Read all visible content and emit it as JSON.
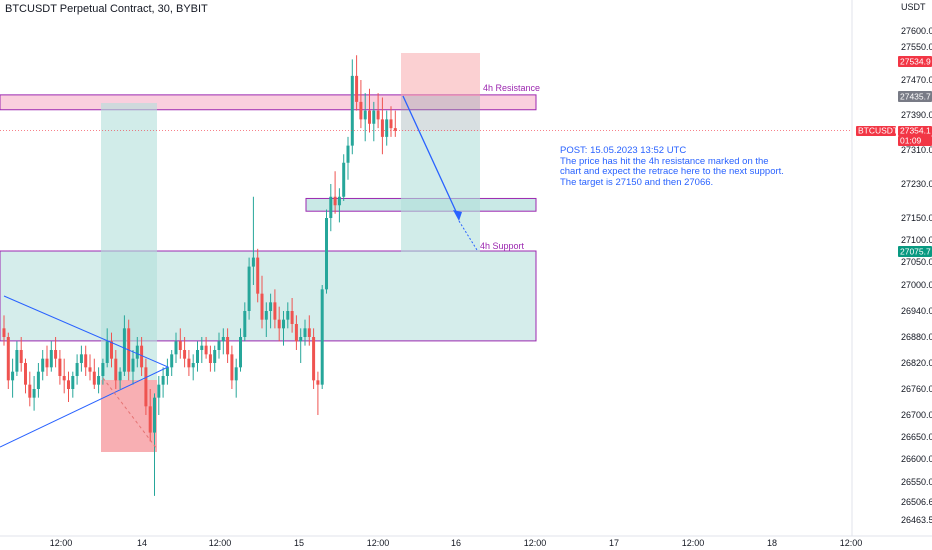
{
  "header": {
    "title": "BTCUSDT Perpetual Contract, 30, BYBIT"
  },
  "annotations": {
    "post": "POST: 15.05.2023 13:52 UTC\nThe price has hit the 4h resistance marked on the chart and expect the retrace here to the next support. The target is 27150 and then 27066.",
    "resistance_label": "4h Resistance",
    "support_label": "4h Support"
  },
  "colors": {
    "up": "#26a69a",
    "down": "#ef5350",
    "zone_border": "#9c27b0",
    "resistance_fill": "#f8bbd0",
    "green_fill": "#b2dfdb",
    "red_fill": "#f7a1a6",
    "line_blue": "#2962ff",
    "tag_red": "#f23645",
    "tag_green": "#089981",
    "tag_gray": "#787b86"
  },
  "chart_data": {
    "type": "candlestick",
    "currency": "USDT",
    "y_ticks": [
      27600.0,
      27550.0,
      27470.0,
      27390.0,
      27310.0,
      27230.0,
      27150.0,
      27100.0,
      27050.0,
      27000.0,
      26940.0,
      26880.0,
      26820.0,
      26760.0,
      26700.0,
      26650.0,
      26600.0,
      26550.0,
      26506.6,
      26463.5
    ],
    "x_ticks": [
      "12:00",
      "14",
      "12:00",
      "15",
      "12:00",
      "16",
      "12:00",
      "17",
      "12:00",
      "18",
      "12:00"
    ],
    "price_tags": [
      {
        "label": "27534.9",
        "value": 27534.9,
        "color": "tag_red"
      },
      {
        "label": "27435.7",
        "value": 27435.7,
        "color": "tag_gray"
      },
      {
        "label": "BTCUSDT.P",
        "value": 27354.1,
        "color": "tag_red"
      },
      {
        "label": "27354.1",
        "value": 27354.1,
        "color": "tag_red"
      },
      {
        "label": "01:09",
        "value": 27354.1,
        "color": "tag_red"
      },
      {
        "label": "27075.7",
        "value": 27075.7,
        "color": "tag_green"
      }
    ],
    "zones": {
      "resistance_4h": {
        "top": 27436,
        "bottom": 27402
      },
      "support_mid": {
        "top": 27196,
        "bottom": 27166
      },
      "support_4h": {
        "top": 27075,
        "bottom": 26871
      }
    },
    "current_price": 27354.1,
    "target_prices": [
      27150,
      27066
    ],
    "candles_ohlc": [
      [
        26900,
        26930,
        26860,
        26880
      ],
      [
        26880,
        26890,
        26760,
        26780
      ],
      [
        26780,
        26830,
        26740,
        26800
      ],
      [
        26800,
        26870,
        26790,
        26850
      ],
      [
        26850,
        26880,
        26800,
        26820
      ],
      [
        26820,
        26830,
        26750,
        26770
      ],
      [
        26770,
        26800,
        26720,
        26740
      ],
      [
        26740,
        26790,
        26710,
        26760
      ],
      [
        26760,
        26820,
        26740,
        26800
      ],
      [
        26800,
        26850,
        26780,
        26830
      ],
      [
        26830,
        26860,
        26790,
        26810
      ],
      [
        26810,
        26870,
        26800,
        26850
      ],
      [
        26850,
        26880,
        26810,
        26830
      ],
      [
        26830,
        26850,
        26770,
        26790
      ],
      [
        26790,
        26830,
        26750,
        26780
      ],
      [
        26780,
        26800,
        26730,
        26760
      ],
      [
        26760,
        26800,
        26740,
        26790
      ],
      [
        26790,
        26840,
        26770,
        26820
      ],
      [
        26820,
        26860,
        26800,
        26840
      ],
      [
        26840,
        26860,
        26790,
        26810
      ],
      [
        26810,
        26840,
        26780,
        26800
      ],
      [
        26800,
        26830,
        26760,
        26770
      ],
      [
        26770,
        26810,
        26750,
        26790
      ],
      [
        26790,
        26830,
        26770,
        26820
      ],
      [
        26820,
        26900,
        26810,
        26870
      ],
      [
        26870,
        26890,
        26810,
        26830
      ],
      [
        26830,
        26850,
        26760,
        26780
      ],
      [
        26780,
        26810,
        26760,
        26800
      ],
      [
        26800,
        26930,
        26790,
        26900
      ],
      [
        26900,
        26920,
        26780,
        26800
      ],
      [
        26800,
        26850,
        26770,
        26830
      ],
      [
        26830,
        26880,
        26810,
        26860
      ],
      [
        26860,
        26880,
        26790,
        26810
      ],
      [
        26810,
        26830,
        26700,
        26720
      ],
      [
        26720,
        26760,
        26640,
        26660
      ],
      [
        26660,
        26750,
        26520,
        26740
      ],
      [
        26740,
        26790,
        26700,
        26770
      ],
      [
        26770,
        26810,
        26740,
        26790
      ],
      [
        26790,
        26830,
        26770,
        26810
      ],
      [
        26810,
        26850,
        26790,
        26840
      ],
      [
        26840,
        26890,
        26820,
        26870
      ],
      [
        26870,
        26900,
        26830,
        26850
      ],
      [
        26850,
        26880,
        26810,
        26830
      ],
      [
        26830,
        26850,
        26790,
        26810
      ],
      [
        26810,
        26840,
        26780,
        26820
      ],
      [
        26820,
        26870,
        26800,
        26850
      ],
      [
        26850,
        26880,
        26820,
        26860
      ],
      [
        26860,
        26880,
        26830,
        26840
      ],
      [
        26840,
        26860,
        26800,
        26820
      ],
      [
        26820,
        26860,
        26800,
        26850
      ],
      [
        26850,
        26890,
        26830,
        26870
      ],
      [
        26870,
        26900,
        26840,
        26880
      ],
      [
        26880,
        26900,
        26820,
        26840
      ],
      [
        26840,
        26860,
        26760,
        26780
      ],
      [
        26780,
        26830,
        26740,
        26810
      ],
      [
        26810,
        26900,
        26800,
        26880
      ],
      [
        26880,
        26960,
        26870,
        26940
      ],
      [
        26940,
        27060,
        26920,
        27040
      ],
      [
        27040,
        27200,
        27000,
        27060
      ],
      [
        27060,
        27080,
        26960,
        26980
      ],
      [
        26980,
        27020,
        26900,
        26920
      ],
      [
        26920,
        26960,
        26880,
        26940
      ],
      [
        26940,
        26980,
        26900,
        26960
      ],
      [
        26960,
        26990,
        26900,
        26920
      ],
      [
        26920,
        26950,
        26870,
        26900
      ],
      [
        26900,
        26940,
        26860,
        26920
      ],
      [
        26920,
        26960,
        26900,
        26940
      ],
      [
        26940,
        26970,
        26890,
        26910
      ],
      [
        26910,
        26930,
        26850,
        26870
      ],
      [
        26870,
        26900,
        26820,
        26880
      ],
      [
        26880,
        26920,
        26860,
        26900
      ],
      [
        26900,
        26930,
        26860,
        26880
      ],
      [
        26880,
        26900,
        26760,
        26780
      ],
      [
        26780,
        26800,
        26700,
        26770
      ],
      [
        26770,
        27000,
        26760,
        26990
      ],
      [
        26990,
        27170,
        26980,
        27150
      ],
      [
        27150,
        27230,
        27120,
        27200
      ],
      [
        27200,
        27260,
        27160,
        27180
      ],
      [
        27180,
        27220,
        27140,
        27200
      ],
      [
        27200,
        27300,
        27190,
        27280
      ],
      [
        27280,
        27340,
        27240,
        27320
      ],
      [
        27320,
        27520,
        27300,
        27480
      ],
      [
        27480,
        27530,
        27400,
        27420
      ],
      [
        27420,
        27470,
        27360,
        27380
      ],
      [
        27380,
        27440,
        27330,
        27400
      ],
      [
        27400,
        27450,
        27350,
        27370
      ],
      [
        27370,
        27420,
        27330,
        27400
      ],
      [
        27400,
        27440,
        27360,
        27380
      ],
      [
        27380,
        27430,
        27300,
        27340
      ],
      [
        27340,
        27400,
        27320,
        27380
      ],
      [
        27380,
        27410,
        27340,
        27360
      ],
      [
        27360,
        27400,
        27340,
        27354.1
      ]
    ]
  }
}
